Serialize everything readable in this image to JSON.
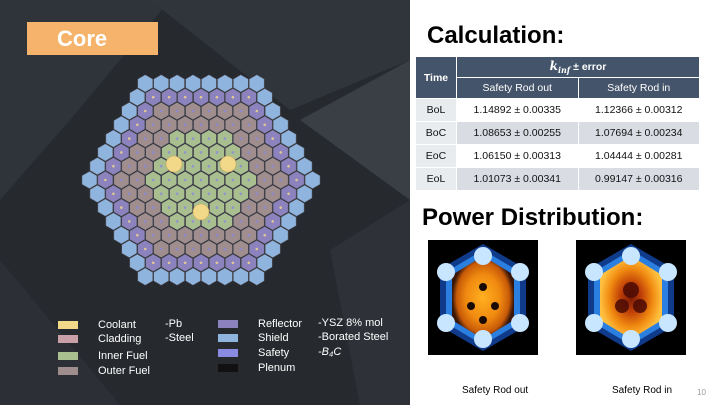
{
  "core": {
    "title": "Core",
    "legend": [
      {
        "name": "Coolant",
        "material": "-Pb",
        "color": "#f2d98a"
      },
      {
        "name": "Cladding",
        "material": "-Steel",
        "color": "#c9a0a8"
      },
      {
        "name": "Inner Fuel",
        "material": "",
        "color": "#a9bf8f"
      },
      {
        "name": "Outer Fuel",
        "material": "",
        "color": "#a08d8d"
      },
      {
        "name": "Reflector",
        "material": "-YSZ 8% mol",
        "color": "#8b82be"
      },
      {
        "name": "Shield",
        "material": "-Borated Steel",
        "color": "#8fb4dd"
      },
      {
        "name": "Safety",
        "material": "",
        "material_formula": "-B₄C",
        "color": "#8a8ae0"
      },
      {
        "name": "Plenum",
        "material": "",
        "color": "#111111"
      }
    ]
  },
  "calc": {
    "heading": "Calculation:",
    "col_time": "Time",
    "group_header": "k",
    "group_sub": "inf",
    "group_suffix": " ± error",
    "col_out": "Safety Rod out",
    "col_in": "Safety Rod in",
    "rows": [
      {
        "time": "BoL",
        "out": "1.14892 ± 0.00335",
        "in": "1.12366 ± 0.00312"
      },
      {
        "time": "BoC",
        "out": "1.08653 ± 0.00255",
        "in": "1.07694 ± 0.00234"
      },
      {
        "time": "EoC",
        "out": "1.06150 ± 0.00313",
        "in": "1.04444 ± 0.00281"
      },
      {
        "time": "EoL",
        "out": "1.01073 ± 0.00341",
        "in": "0.99147 ± 0.00316"
      }
    ]
  },
  "power": {
    "heading": "Power Distribution:",
    "caption_out": "Safety Rod out",
    "caption_in": "Safety Rod in"
  },
  "slide_number": "10"
}
